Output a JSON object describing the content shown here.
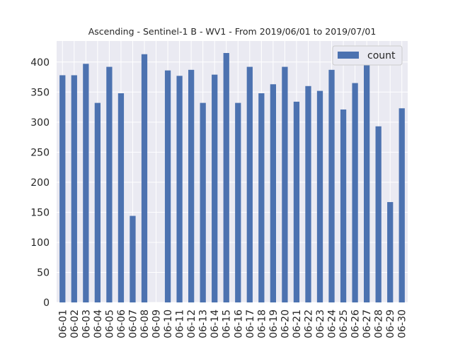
{
  "chart_data": {
    "type": "bar",
    "title": "Ascending - Sentinel-1 B - WV1 - From 2019/06/01 to 2019/07/01",
    "xlabel": "",
    "ylabel": "",
    "ylim": [
      0,
      435
    ],
    "yticks": [
      0,
      50,
      100,
      150,
      200,
      250,
      300,
      350,
      400
    ],
    "grid": true,
    "legend_position": "top-right",
    "categories": [
      "06-01",
      "06-02",
      "06-03",
      "06-04",
      "06-05",
      "06-06",
      "06-07",
      "06-08",
      "06-09",
      "06-10",
      "06-11",
      "06-12",
      "06-13",
      "06-14",
      "06-15",
      "06-16",
      "06-17",
      "06-18",
      "06-19",
      "06-20",
      "06-21",
      "06-22",
      "06-23",
      "06-24",
      "06-25",
      "06-26",
      "06-27",
      "06-28",
      "06-29",
      "06-30"
    ],
    "series": [
      {
        "name": "count",
        "color": "#4c72b0",
        "values": [
          378,
          378,
          397,
          332,
          392,
          348,
          144,
          413,
          0,
          386,
          377,
          387,
          332,
          379,
          415,
          332,
          392,
          348,
          363,
          392,
          334,
          360,
          352,
          387,
          321,
          365,
          422,
          293,
          167,
          323
        ]
      }
    ],
    "colors": {
      "plot_background": "#eaeaf2",
      "grid": "#ffffff",
      "bar": "#4c72b0"
    }
  }
}
